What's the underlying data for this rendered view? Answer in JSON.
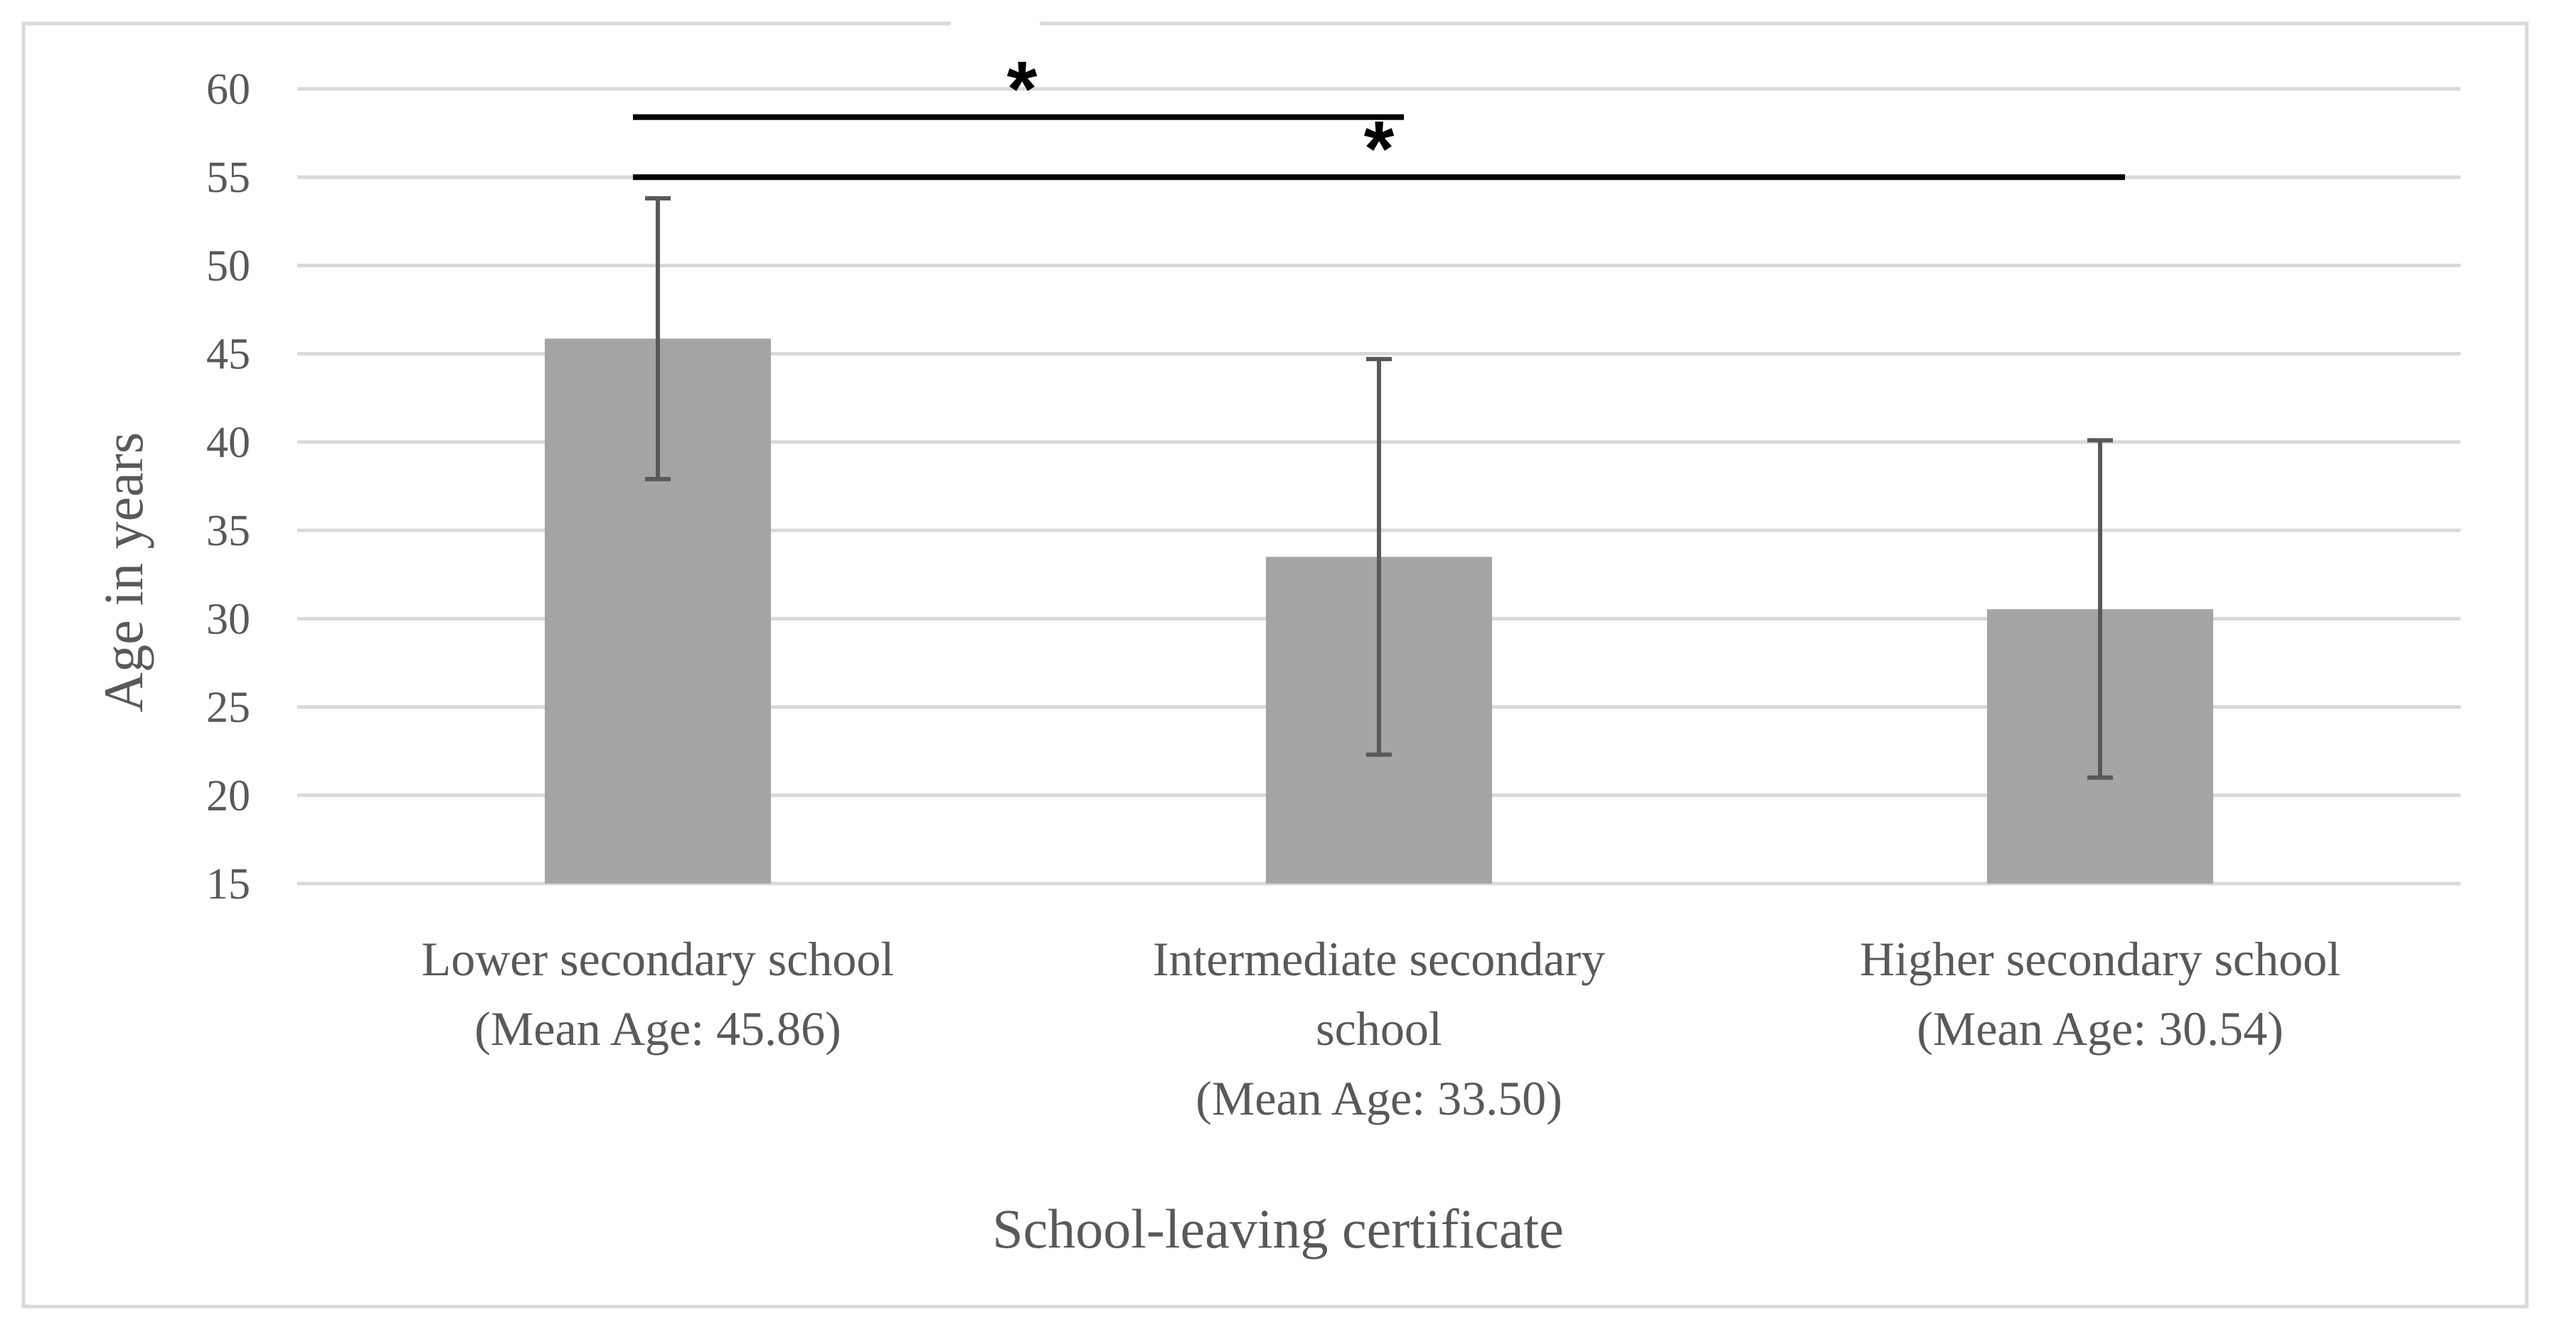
{
  "chart_data": {
    "type": "bar",
    "title": "",
    "xlabel": "School-leaving certificate",
    "ylabel": "Age in years",
    "ylim": [
      15,
      60
    ],
    "y_ticks": [
      15,
      20,
      25,
      30,
      35,
      40,
      45,
      50,
      55,
      60
    ],
    "grid": true,
    "categories": [
      {
        "lines": [
          "Lower secondary school",
          "(Mean Age: 45.86)"
        ],
        "value": 45.86,
        "error_low": 37.9,
        "error_high": 53.8
      },
      {
        "lines": [
          "Intermediate secondary",
          "school",
          "(Mean Age: 33.50)"
        ],
        "value": 33.5,
        "error_low": 22.3,
        "error_high": 44.7
      },
      {
        "lines": [
          "Higher secondary school",
          "(Mean Age: 30.54)"
        ],
        "value": 30.54,
        "error_low": 21.0,
        "error_high": 40.1
      }
    ],
    "significance": [
      {
        "from_category": 0,
        "to_category": 1,
        "y_value": 58.4,
        "marker": "*"
      },
      {
        "from_category": 0,
        "to_category": 2,
        "y_value": 55.0,
        "marker": "*"
      }
    ],
    "colors": {
      "bar": "#a5a5a5",
      "error_bar": "#595959",
      "grid": "#d9d9d9",
      "text": "#595959",
      "significance": "#000000",
      "frame": "#d9d9d9"
    }
  }
}
